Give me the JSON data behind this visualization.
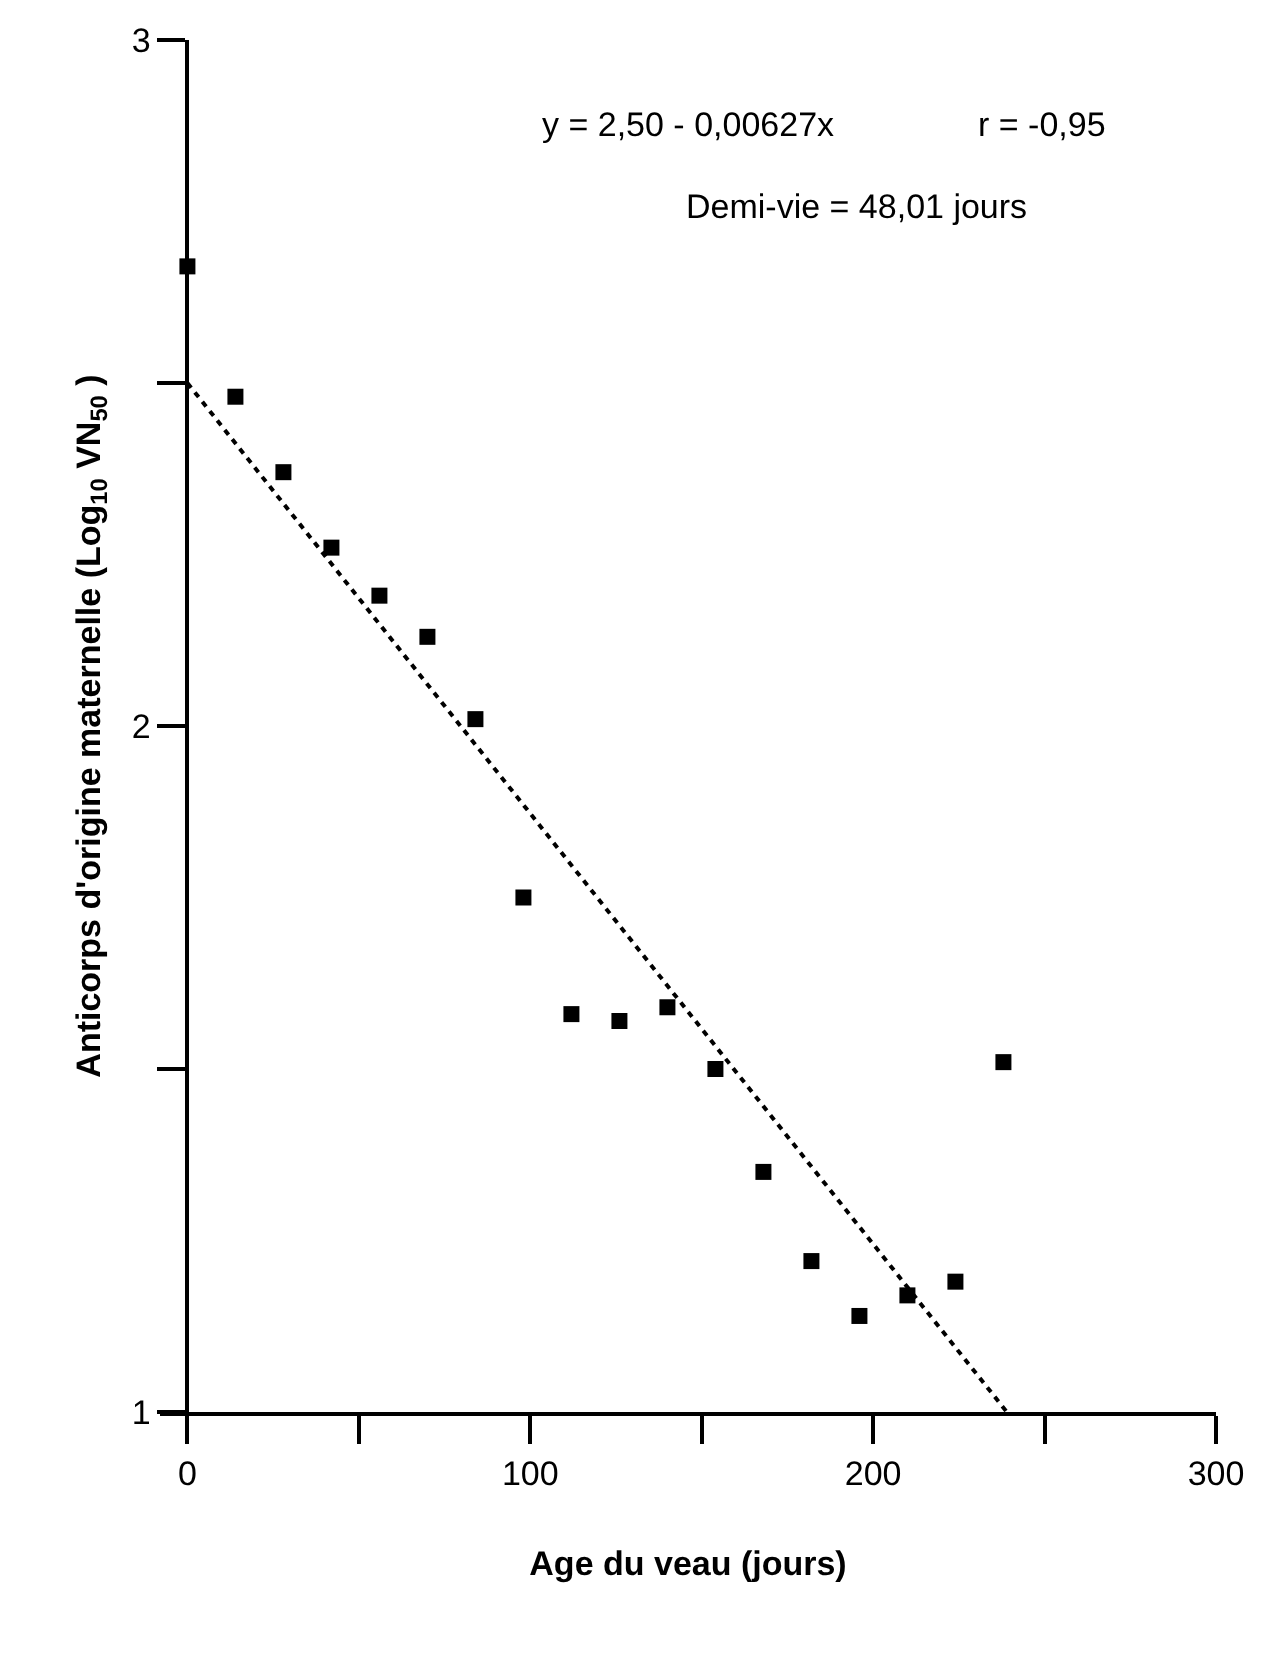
{
  "chart_data": {
    "type": "scatter",
    "xlabel": "Age du veau (jours)",
    "ylabel": "Anticorps d'origine maternelle (Log$_{10}$ VN$_{50}$ )",
    "annotations": [
      "y = 2,50 - 0,00627x",
      "r = -0,95",
      "Demi-vie = 48,01 jours"
    ],
    "series": [
      {
        "type": "scatter",
        "marker": "square",
        "color": "#000000",
        "x": [
          0,
          14,
          28,
          42,
          56,
          70,
          84,
          98,
          112,
          126,
          140,
          154,
          168,
          182,
          196,
          210,
          224,
          238
        ],
        "values": [
          2.67,
          2.48,
          2.37,
          2.26,
          2.19,
          2.13,
          2.01,
          1.75,
          1.58,
          1.57,
          1.59,
          1.5,
          1.35,
          1.22,
          1.14,
          1.17,
          1.19,
          1.51
        ]
      },
      {
        "type": "line",
        "color": "#000000",
        "line_style": "dotted",
        "x": [
          0,
          239
        ],
        "values": [
          2.5,
          1.0
        ]
      }
    ],
    "xlim": [
      -8,
      300
    ],
    "xticks": [
      0,
      {
        "value": 50,
        "label": null
      },
      100,
      {
        "value": 150,
        "label": null
      },
      200,
      {
        "value": 250,
        "label": null
      },
      300
    ],
    "ylim": [
      1,
      3
    ],
    "yticks": [
      1,
      {
        "value": 1.5,
        "label": null
      },
      2,
      {
        "value": 2.5,
        "label": null
      },
      3
    ],
    "grid": false
  }
}
